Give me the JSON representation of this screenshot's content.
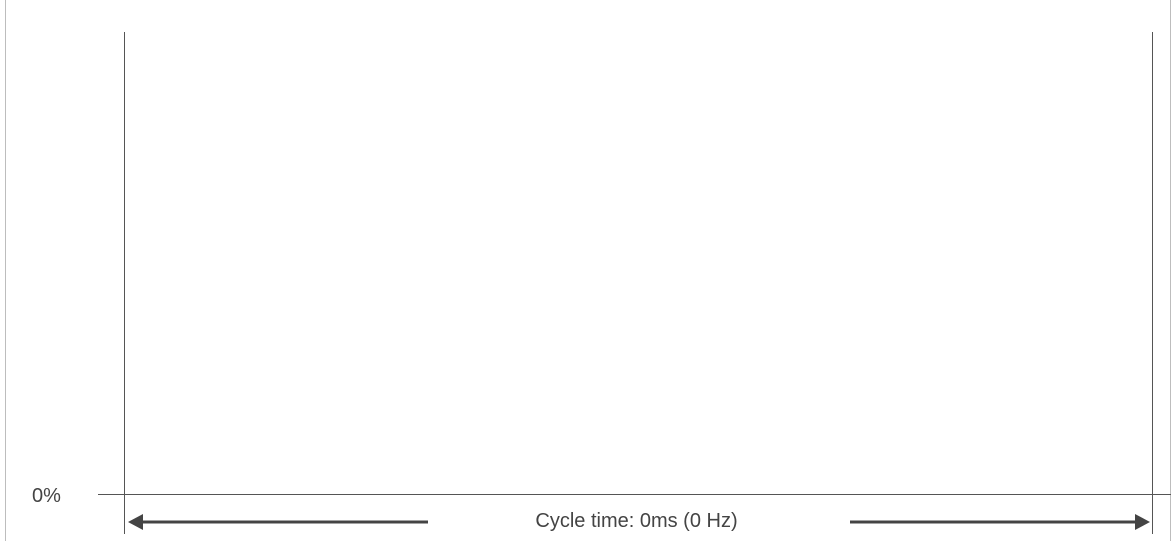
{
  "plot": {
    "y_min_label": "0%",
    "cycle_time_label": "Cycle time: 0ms (0 Hz)"
  },
  "colors": {
    "axis": "#555555",
    "arrow": "#444444",
    "text": "#444444",
    "frame": "#bdbdbd"
  }
}
